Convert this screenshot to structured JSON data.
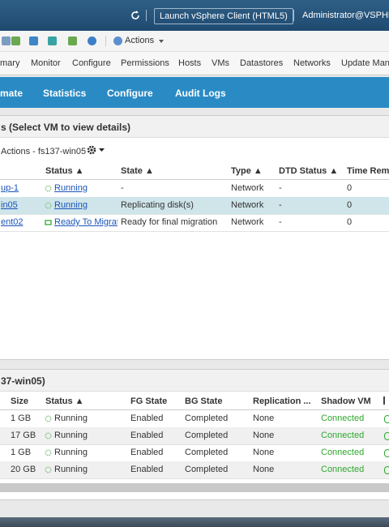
{
  "header": {
    "launch_button": "Launch vSphere Client (HTML5)",
    "user": "Administrator@VSPHE"
  },
  "toolbar": {
    "actions": "Actions"
  },
  "tabs": [
    "mary",
    "Monitor",
    "Configure",
    "Permissions",
    "Hosts",
    "VMs",
    "Datastores",
    "Networks",
    "Update Mana"
  ],
  "nav": [
    "mate",
    "Statistics",
    "Configure",
    "Audit Logs"
  ],
  "panel1": {
    "title": "s (Select VM to view details)",
    "actions": "Actions - fs137-win05",
    "columns": [
      "Status ▲",
      "State ▲",
      "Type ▲",
      "DTD Status ▲",
      "Time Rema"
    ],
    "rows": [
      [
        "up-1",
        "Running",
        "-",
        "Network",
        "-",
        "0"
      ],
      [
        "in05",
        "Running",
        "Replicating disk(s)",
        "Network",
        "-",
        "0"
      ],
      [
        "ent02",
        "Ready To Migrat",
        "Ready for final migration",
        "Network",
        "-",
        "0"
      ]
    ]
  },
  "panel2": {
    "title": "37-win05)",
    "columns": [
      "Size",
      "Status ▲",
      "FG State",
      "BG State",
      "Replication ...",
      "Shadow VM"
    ],
    "rows": [
      [
        "1 GB",
        "Running",
        "Enabled",
        "Completed",
        "None",
        "Connected"
      ],
      [
        "17 GB",
        "Running",
        "Enabled",
        "Completed",
        "None",
        "Connected"
      ],
      [
        "1 GB",
        "Running",
        "Enabled",
        "Completed",
        "None",
        "Connected"
      ],
      [
        "20 GB",
        "Running",
        "Enabled",
        "Completed",
        "None",
        "Connected"
      ]
    ]
  }
}
